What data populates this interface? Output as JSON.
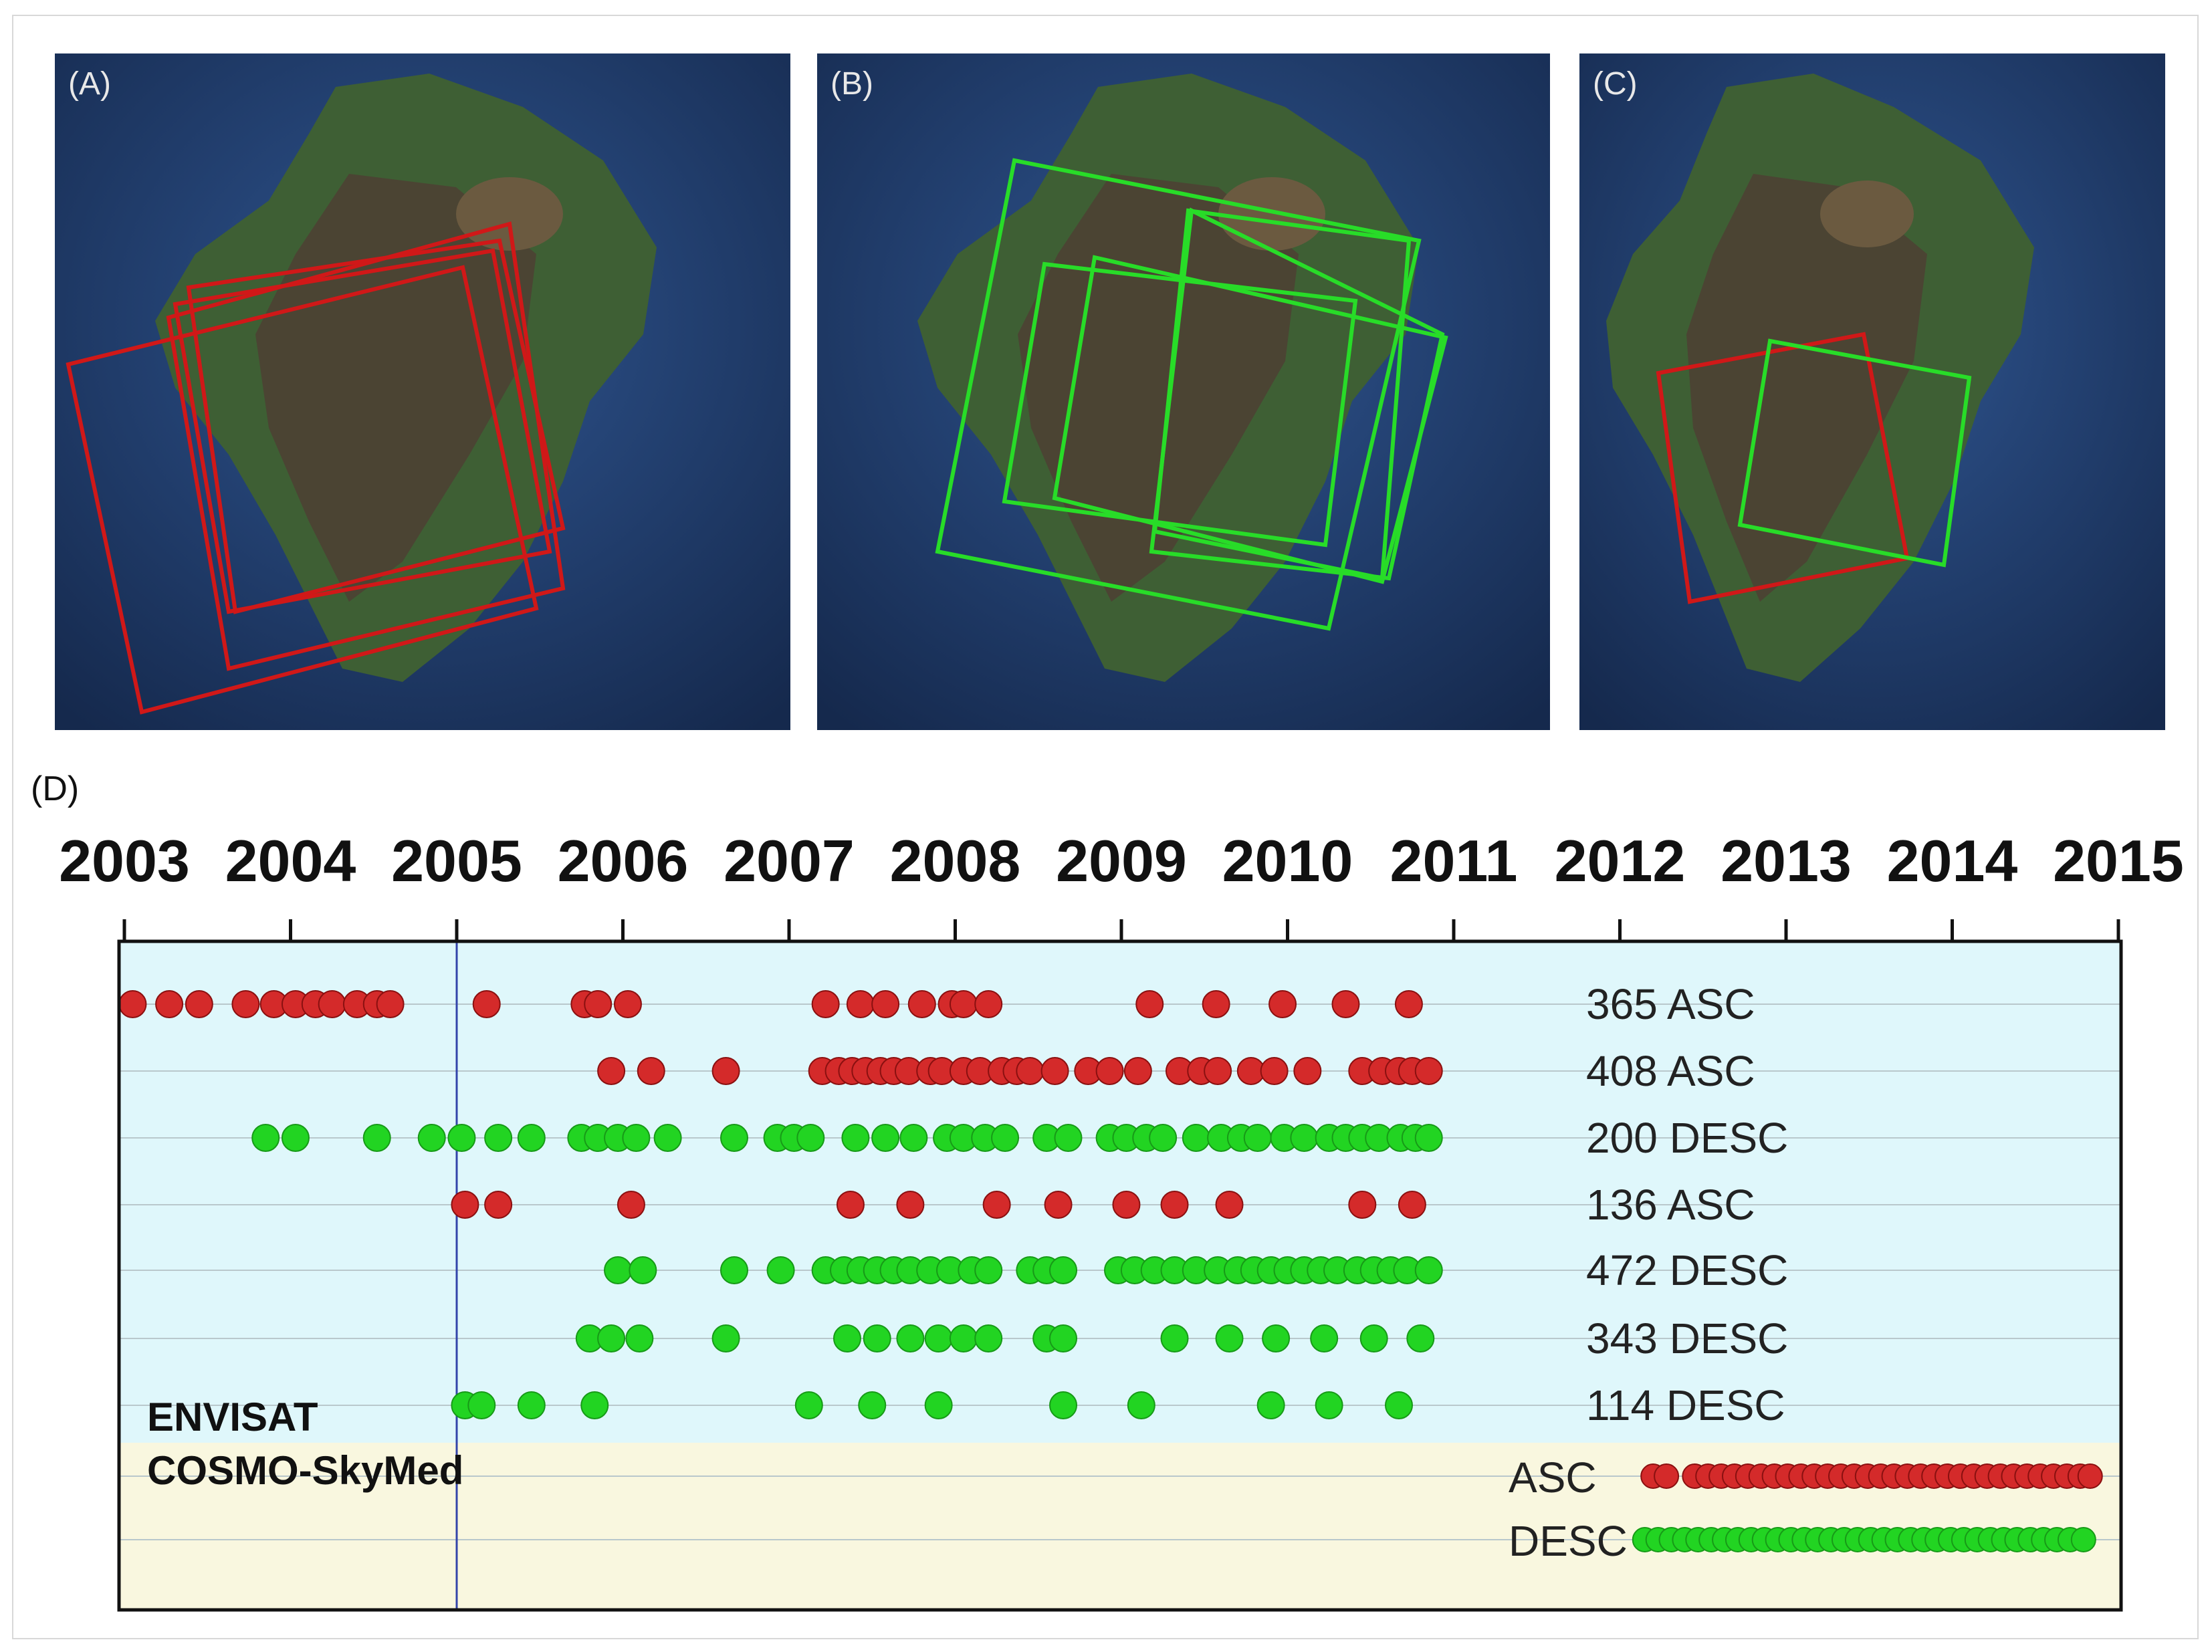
{
  "panels": {
    "a": {
      "label": "(A)"
    },
    "b": {
      "label": "(B)"
    },
    "c": {
      "label": "(C)"
    },
    "d": {
      "label": "(D)"
    }
  },
  "colors": {
    "asc": "#d42a2a",
    "desc": "#22d422",
    "envisat_bg": "#dff7fb",
    "csk_bg": "#f9f7df",
    "ocean": "#1f3d6e",
    "land_dark": "#4d4a3a",
    "land_green": "#3f6a35",
    "vertical_line": "#3344aa"
  },
  "chart_data": {
    "type": "scatter",
    "xlim": [
      2003,
      2015
    ],
    "x_ticks": [
      "2003",
      "2004",
      "2005",
      "2006",
      "2007",
      "2008",
      "2009",
      "2010",
      "2011",
      "2012",
      "2013",
      "2014",
      "2015"
    ],
    "vertical_marker": 2005.0,
    "groups": [
      {
        "name": "ENVISAT",
        "tracks": [
          {
            "name": "365 ASC",
            "direction": "asc",
            "x": [
              2003.05,
              2003.27,
              2003.45,
              2003.73,
              2003.9,
              2004.03,
              2004.15,
              2004.25,
              2004.4,
              2004.52,
              2004.6,
              2005.18,
              2005.77,
              2005.85,
              2006.03,
              2007.22,
              2007.43,
              2007.58,
              2007.8,
              2007.98,
              2008.05,
              2008.2,
              2009.17,
              2009.57,
              2009.97,
              2010.35,
              2010.73
            ]
          },
          {
            "name": "408 ASC",
            "direction": "asc",
            "x": [
              2005.93,
              2006.17,
              2006.62,
              2007.2,
              2007.3,
              2007.38,
              2007.46,
              2007.55,
              2007.63,
              2007.72,
              2007.85,
              2007.92,
              2008.05,
              2008.15,
              2008.28,
              2008.37,
              2008.45,
              2008.6,
              2008.8,
              2008.93,
              2009.1,
              2009.35,
              2009.48,
              2009.58,
              2009.78,
              2009.92,
              2010.12,
              2010.45,
              2010.57,
              2010.67,
              2010.75,
              2010.85
            ]
          },
          {
            "name": "200 DESC",
            "direction": "desc",
            "x": [
              2003.85,
              2004.03,
              2004.52,
              2004.85,
              2005.03,
              2005.25,
              2005.45,
              2005.75,
              2005.85,
              2005.97,
              2006.08,
              2006.27,
              2006.67,
              2006.93,
              2007.03,
              2007.13,
              2007.4,
              2007.58,
              2007.75,
              2007.95,
              2008.05,
              2008.18,
              2008.3,
              2008.55,
              2008.68,
              2008.93,
              2009.03,
              2009.15,
              2009.25,
              2009.45,
              2009.6,
              2009.72,
              2009.82,
              2009.98,
              2010.1,
              2010.25,
              2010.35,
              2010.45,
              2010.55,
              2010.68,
              2010.77,
              2010.85
            ]
          },
          {
            "name": "136 ASC",
            "direction": "asc",
            "x": [
              2005.05,
              2005.25,
              2006.05,
              2007.37,
              2007.73,
              2008.25,
              2008.62,
              2009.03,
              2009.32,
              2009.65,
              2010.45,
              2010.75
            ]
          },
          {
            "name": "472 DESC",
            "direction": "desc",
            "x": [
              2005.97,
              2006.12,
              2006.67,
              2006.95,
              2007.22,
              2007.33,
              2007.43,
              2007.53,
              2007.63,
              2007.73,
              2007.85,
              2007.97,
              2008.1,
              2008.2,
              2008.45,
              2008.55,
              2008.65,
              2008.98,
              2009.08,
              2009.2,
              2009.32,
              2009.45,
              2009.58,
              2009.7,
              2009.8,
              2009.9,
              2010.0,
              2010.1,
              2010.2,
              2010.3,
              2010.42,
              2010.52,
              2010.62,
              2010.72,
              2010.85
            ]
          },
          {
            "name": "343 DESC",
            "direction": "desc",
            "x": [
              2005.8,
              2005.93,
              2006.1,
              2006.62,
              2007.35,
              2007.53,
              2007.73,
              2007.9,
              2008.05,
              2008.2,
              2008.55,
              2008.65,
              2009.32,
              2009.65,
              2009.93,
              2010.22,
              2010.52,
              2010.8
            ]
          },
          {
            "name": "114 DESC",
            "direction": "desc",
            "x": [
              2005.05,
              2005.15,
              2005.45,
              2005.83,
              2007.12,
              2007.5,
              2007.9,
              2008.65,
              2009.12,
              2009.9,
              2010.25,
              2010.67
            ]
          }
        ]
      },
      {
        "name": "COSMO-SkyMed",
        "tracks": [
          {
            "name": "ASC",
            "direction": "asc",
            "x": [
              2012.2,
              2012.28,
              2012.45,
              2012.53,
              2012.61,
              2012.69,
              2012.77,
              2012.85,
              2012.93,
              2013.01,
              2013.09,
              2013.17,
              2013.25,
              2013.33,
              2013.41,
              2013.49,
              2013.57,
              2013.65,
              2013.73,
              2013.81,
              2013.89,
              2013.97,
              2014.05,
              2014.13,
              2014.21,
              2014.29,
              2014.37,
              2014.45,
              2014.53,
              2014.61,
              2014.69,
              2014.77,
              2014.83
            ]
          },
          {
            "name": "DESC",
            "direction": "desc",
            "x": [
              2012.15,
              2012.23,
              2012.31,
              2012.39,
              2012.47,
              2012.55,
              2012.63,
              2012.71,
              2012.79,
              2012.87,
              2012.95,
              2013.03,
              2013.11,
              2013.19,
              2013.27,
              2013.35,
              2013.43,
              2013.51,
              2013.59,
              2013.67,
              2013.75,
              2013.83,
              2013.91,
              2013.99,
              2014.07,
              2014.15,
              2014.23,
              2014.31,
              2014.39,
              2014.47,
              2014.55,
              2014.63,
              2014.71,
              2014.79
            ]
          }
        ]
      }
    ]
  }
}
